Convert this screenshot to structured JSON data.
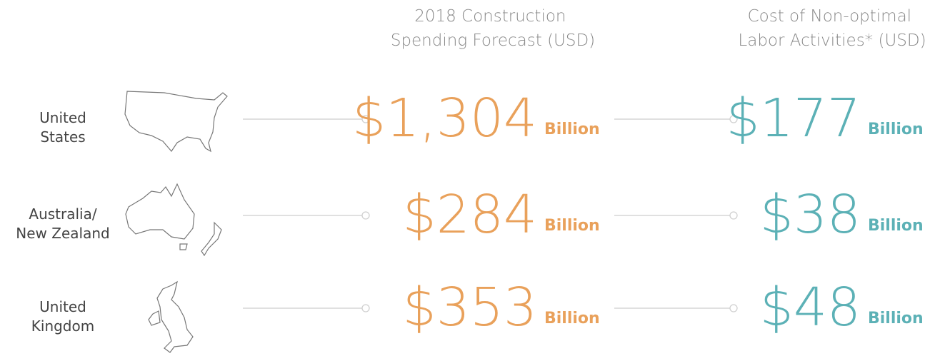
{
  "headers": [
    [
      "2018 Construction",
      "Spending Forecast (USD)"
    ],
    [
      "Cost of Non-optimal",
      "Labor Activities* (USD)"
    ]
  ],
  "rows": [
    {
      "region": [
        "United",
        "States"
      ],
      "spending": "$1,304",
      "spending_unit": "Billion",
      "cost": "$177",
      "cost_unit": "Billion"
    },
    {
      "region": [
        "Australia/",
        "New Zealand"
      ],
      "spending": "$284",
      "spending_unit": "Billion",
      "cost": "$38",
      "cost_unit": "Billion"
    },
    {
      "region": [
        "United",
        "Kingdom"
      ],
      "spending": "$353",
      "spending_unit": "Billion",
      "cost": "$48",
      "cost_unit": "Billion"
    }
  ]
}
